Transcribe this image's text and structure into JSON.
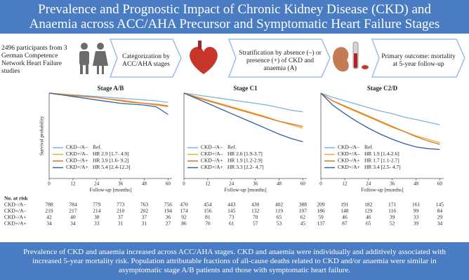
{
  "header": {
    "title": "Prevalence and Prognostic Impact of Chronic Kidney Disease (CKD) and Anaemia across ACC/AHA Precursor and Symptomatic Heart Failure Stages"
  },
  "flow": [
    "2496 participants from 3 German Competence Network Heart Failure studies",
    "Categorization by ACC/AHA stages",
    "Stratification by absence (–) or presence (+) of CKD and anaemia (A)",
    "Primary outcome: mortality at 5-year follow-up"
  ],
  "chart_data": [
    {
      "type": "line",
      "title": "Stage A/B",
      "xlabel": "Follow-up [months]",
      "ylabel": "Survival probability",
      "x": [
        0,
        6,
        12,
        18,
        24,
        30,
        36,
        42,
        48,
        54,
        60
      ],
      "xlim": [
        0,
        62
      ],
      "xticks": [
        0,
        12,
        24,
        36,
        48,
        60
      ],
      "ylim": [
        0,
        1
      ],
      "series": [
        {
          "name": "CKD–/A–",
          "label": "Ref.",
          "color": "#7fb2e5",
          "values": [
            1,
            0.99,
            0.98,
            0.97,
            0.96,
            0.95,
            0.94,
            0.93,
            0.92,
            0.91,
            0.89
          ]
        },
        {
          "name": "CKD+/A–",
          "label": "HR 2.9 [1.7- 4.9]",
          "color": "#f2a93b",
          "values": [
            1,
            0.99,
            0.975,
            0.96,
            0.95,
            0.93,
            0.92,
            0.9,
            0.88,
            0.86,
            0.84
          ]
        },
        {
          "name": "CKD–/A+",
          "label": "HR 3.9 [1.6- 9.2]",
          "color": "#d9741f",
          "values": [
            1,
            0.98,
            0.97,
            0.96,
            0.95,
            0.93,
            0.91,
            0.89,
            0.88,
            0.87,
            0.85
          ]
        },
        {
          "name": "CKD+/A+",
          "label": "HR 5.4 [2.4-12.3]",
          "color": "#2e5fa8",
          "values": [
            1,
            0.98,
            0.96,
            0.94,
            0.92,
            0.9,
            0.88,
            0.87,
            0.86,
            0.84,
            0.75
          ]
        }
      ],
      "at_risk": [
        [
          788,
          784,
          779,
          773,
          763,
          756
        ],
        [
          219,
          217,
          214,
          210,
          202,
          194
        ],
        [
          42,
          40,
          38,
          37,
          37,
          36
        ],
        [
          34,
          34,
          33,
          31,
          31,
          27
        ]
      ]
    },
    {
      "type": "line",
      "title": "Stage C1",
      "xlabel": "Follow-up [months]",
      "x": [
        0,
        6,
        12,
        18,
        24,
        30,
        36,
        42,
        48,
        54,
        60
      ],
      "xlim": [
        0,
        62
      ],
      "xticks": [
        0,
        12,
        24,
        36,
        48,
        60
      ],
      "ylim": [
        0,
        1
      ],
      "series": [
        {
          "name": "CKD–/A–",
          "label": "Ref.",
          "color": "#7fb2e5",
          "values": [
            1,
            0.98,
            0.96,
            0.94,
            0.92,
            0.9,
            0.88,
            0.86,
            0.83,
            0.8,
            0.78
          ]
        },
        {
          "name": "CKD+/A–",
          "label": "HR 2.6 [1.9-3.7]",
          "color": "#f2a93b",
          "values": [
            1,
            0.96,
            0.92,
            0.88,
            0.84,
            0.8,
            0.76,
            0.72,
            0.67,
            0.63,
            0.59
          ]
        },
        {
          "name": "CKD–/A+",
          "label": "HR 1.9 [1.2-2.9]",
          "color": "#d9741f",
          "values": [
            1,
            0.95,
            0.91,
            0.87,
            0.83,
            0.79,
            0.75,
            0.71,
            0.67,
            0.64,
            0.61
          ]
        },
        {
          "name": "CKD+/A+",
          "label": "HR 3.3 [2.2- 4.7]",
          "color": "#2e5fa8",
          "values": [
            1,
            0.94,
            0.88,
            0.82,
            0.76,
            0.7,
            0.64,
            0.58,
            0.52,
            0.47,
            0.43
          ]
        }
      ],
      "at_risk": [
        [
          470,
          454,
          443,
          430,
          402,
          388
        ],
        [
          174,
          156,
          145,
          132,
          119,
          107
        ],
        [
          92,
          81,
          73,
          70,
          65,
          62
        ],
        [
          86,
          70,
          61,
          57,
          53,
          45
        ]
      ]
    },
    {
      "type": "line",
      "title": "Stage C2/D",
      "xlabel": "Follow-up [months]",
      "x": [
        0,
        6,
        12,
        18,
        24,
        30,
        36,
        42,
        48,
        54,
        60
      ],
      "xlim": [
        0,
        62
      ],
      "xticks": [
        0,
        12,
        24,
        36,
        48,
        60
      ],
      "ylim": [
        0,
        1
      ],
      "series": [
        {
          "name": "CKD–/A–",
          "label": "Ref.",
          "color": "#7fb2e5",
          "values": [
            1,
            0.95,
            0.91,
            0.87,
            0.83,
            0.79,
            0.76,
            0.72,
            0.69,
            0.66,
            0.63
          ]
        },
        {
          "name": "CKD+/A–",
          "label": "HR 1.9 [1.4-2.6]",
          "color": "#f2a93b",
          "values": [
            1,
            0.91,
            0.84,
            0.78,
            0.72,
            0.66,
            0.6,
            0.55,
            0.5,
            0.46,
            0.42
          ]
        },
        {
          "name": "CKD–/A+",
          "label": "HR 1.7 [1.1-2.7]",
          "color": "#d9741f",
          "values": [
            1,
            0.91,
            0.85,
            0.79,
            0.73,
            0.67,
            0.61,
            0.55,
            0.49,
            0.44,
            0.4
          ]
        },
        {
          "name": "CKD+/A+",
          "label": "HR 3.4 [2.5- 4.7]",
          "color": "#2e5fa8",
          "values": [
            1,
            0.86,
            0.76,
            0.67,
            0.59,
            0.52,
            0.46,
            0.41,
            0.37,
            0.35,
            0.34
          ]
        }
      ],
      "at_risk": [
        [
          209,
          191,
          182,
          171,
          161,
          145
        ],
        [
          186,
          148,
          129,
          116,
          99,
          84
        ],
        [
          59,
          46,
          46,
          39,
          33,
          29
        ],
        [
          137,
          87,
          65,
          52,
          39,
          34
        ]
      ]
    }
  ],
  "risk_table": {
    "title": "No. at risk",
    "rows": [
      "CKD–/A–",
      "CKD+/A–",
      "CKD–/A+",
      "CKD+/A+"
    ]
  },
  "footer": {
    "text": "Prevalence of CKD and anaemia increased across ACC/AHA stages. CKD and anaemia were individually and additively associated with increased 5-year mortality risk. Population attributable fractions of all-cause deaths related to CKD and/or anaemia were similar in asymptomatic stage A/B patients and those with symptomatic heart failure."
  }
}
